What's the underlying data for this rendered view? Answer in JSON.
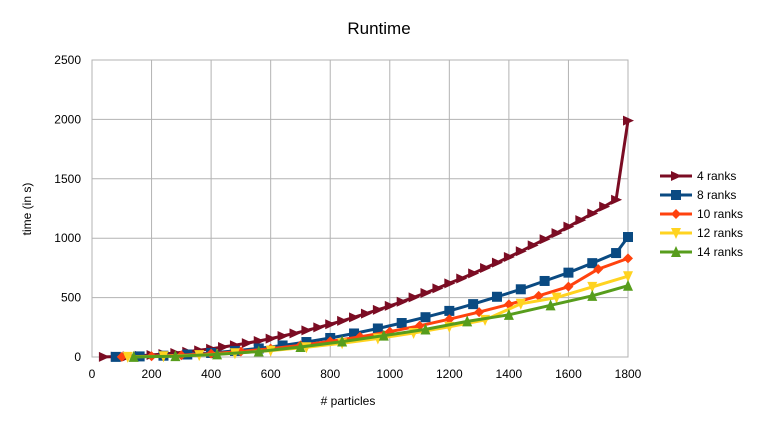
{
  "chart_data": {
    "type": "line",
    "title": "Runtime",
    "xlabel": "# particles",
    "ylabel": "time (in s)",
    "xlim": [
      0,
      1800
    ],
    "ylim": [
      0,
      2500
    ],
    "xticks": [
      0,
      200,
      400,
      600,
      800,
      1000,
      1200,
      1400,
      1600,
      1800
    ],
    "yticks": [
      0,
      500,
      1000,
      1500,
      2000,
      2500
    ],
    "grid": true,
    "legend_position": "right",
    "series": [
      {
        "name": "4 ranks",
        "color": "#7b0c23",
        "marker": "triangle-right",
        "x": [
          40,
          80,
          120,
          160,
          200,
          240,
          280,
          320,
          360,
          400,
          440,
          480,
          520,
          560,
          600,
          640,
          680,
          720,
          760,
          800,
          840,
          880,
          920,
          960,
          1000,
          1040,
          1080,
          1120,
          1160,
          1200,
          1240,
          1280,
          1320,
          1360,
          1400,
          1440,
          1480,
          1520,
          1560,
          1600,
          1640,
          1680,
          1720,
          1760,
          1800
        ],
        "y": [
          1,
          3,
          6,
          11,
          17,
          25,
          34,
          44,
          56,
          69,
          84,
          99,
          117,
          135,
          155,
          177,
          199,
          224,
          249,
          276,
          304,
          334,
          365,
          397,
          430,
          465,
          502,
          539,
          578,
          620,
          661,
          704,
          749,
          794,
          842,
          890,
          940,
          991,
          1043,
          1097,
          1152,
          1208,
          1266,
          1324,
          1990
        ]
      },
      {
        "name": "8 ranks",
        "color": "#0a4a82",
        "marker": "square",
        "x": [
          80,
          160,
          240,
          320,
          400,
          480,
          560,
          640,
          720,
          800,
          880,
          960,
          1040,
          1120,
          1200,
          1280,
          1360,
          1440,
          1520,
          1600,
          1680,
          1760,
          1800
        ],
        "y": [
          1,
          5,
          11,
          21,
          34,
          51,
          72,
          97,
          126,
          160,
          198,
          240,
          286,
          335,
          388,
          445,
          507,
          570,
          640,
          710,
          790,
          875,
          1010
        ]
      },
      {
        "name": "10 ranks",
        "color": "#ff420e",
        "marker": "diamond",
        "x": [
          100,
          200,
          300,
          400,
          500,
          600,
          700,
          800,
          900,
          1000,
          1100,
          1200,
          1300,
          1400,
          1500,
          1600,
          1700,
          1800
        ],
        "y": [
          1,
          6,
          15,
          28,
          46,
          70,
          98,
          131,
          170,
          214,
          263,
          318,
          378,
          443,
          515,
          592,
          740,
          830
        ]
      },
      {
        "name": "12 ranks",
        "color": "#ffd320",
        "marker": "triangle-down",
        "x": [
          120,
          240,
          360,
          480,
          600,
          720,
          840,
          960,
          1080,
          1200,
          1320,
          1440,
          1560,
          1680,
          1800
        ],
        "y": [
          1,
          6,
          16,
          32,
          54,
          82,
          116,
          156,
          202,
          254,
          312,
          448,
          500,
          590,
          680
        ]
      },
      {
        "name": "14 ranks",
        "color": "#579d1c",
        "marker": "triangle-up",
        "x": [
          140,
          280,
          420,
          560,
          700,
          840,
          980,
          1120,
          1260,
          1400,
          1540,
          1680,
          1800
        ],
        "y": [
          1,
          7,
          22,
          46,
          84,
          130,
          180,
          232,
          300,
          355,
          435,
          515,
          600
        ]
      }
    ]
  }
}
